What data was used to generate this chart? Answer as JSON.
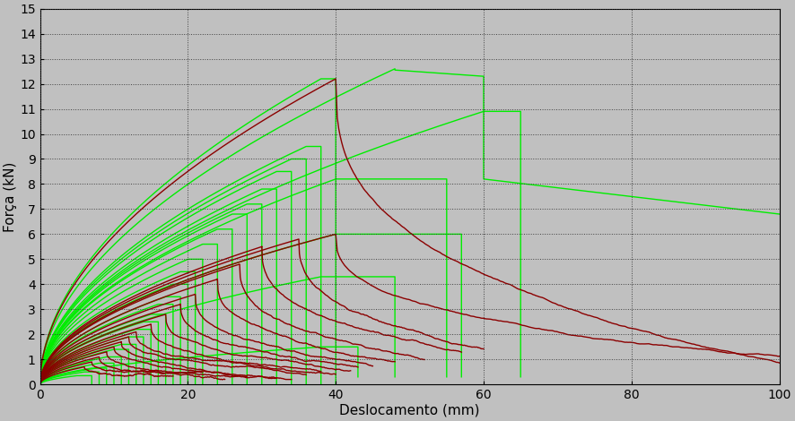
{
  "xlabel": "Deslocamento (mm)",
  "ylabel": "Força (kN)",
  "xlim": [
    0,
    100
  ],
  "ylim": [
    0,
    15
  ],
  "xticks": [
    0,
    20,
    40,
    60,
    80,
    100
  ],
  "yticks": [
    0,
    1,
    2,
    3,
    4,
    5,
    6,
    7,
    8,
    9,
    10,
    11,
    12,
    13,
    14,
    15
  ],
  "background_color": "#C0C0C0",
  "green_color": "#00EE00",
  "red_color": "#8B0000",
  "linewidth": 1.0,
  "rise_exponent": 0.52
}
